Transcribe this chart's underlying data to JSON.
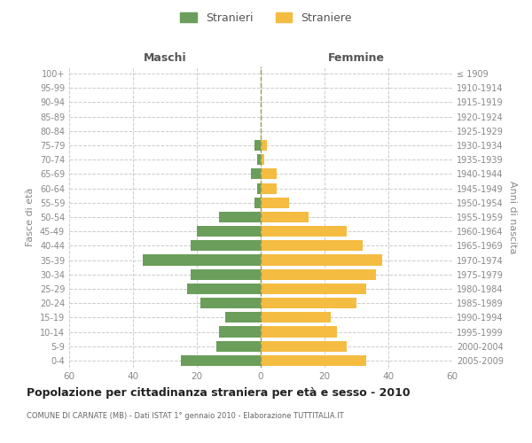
{
  "age_groups": [
    "0-4",
    "5-9",
    "10-14",
    "15-19",
    "20-24",
    "25-29",
    "30-34",
    "35-39",
    "40-44",
    "45-49",
    "50-54",
    "55-59",
    "60-64",
    "65-69",
    "70-74",
    "75-79",
    "80-84",
    "85-89",
    "90-94",
    "95-99",
    "100+"
  ],
  "birth_years": [
    "2005-2009",
    "2000-2004",
    "1995-1999",
    "1990-1994",
    "1985-1989",
    "1980-1984",
    "1975-1979",
    "1970-1974",
    "1965-1969",
    "1960-1964",
    "1955-1959",
    "1950-1954",
    "1945-1949",
    "1940-1944",
    "1935-1939",
    "1930-1934",
    "1925-1929",
    "1920-1924",
    "1915-1919",
    "1910-1914",
    "≤ 1909"
  ],
  "males": [
    25,
    14,
    13,
    11,
    19,
    23,
    22,
    37,
    22,
    20,
    13,
    2,
    1,
    3,
    1,
    2,
    0,
    0,
    0,
    0,
    0
  ],
  "females": [
    33,
    27,
    24,
    22,
    30,
    33,
    36,
    38,
    32,
    27,
    15,
    9,
    5,
    5,
    1,
    2,
    0,
    0,
    0,
    0,
    0
  ],
  "male_color": "#6a9e5a",
  "female_color": "#f5bc42",
  "background_color": "#ffffff",
  "grid_color": "#cccccc",
  "title": "Popolazione per cittadinanza straniera per età e sesso - 2010",
  "subtitle": "COMUNE DI CARNATE (MB) - Dati ISTAT 1° gennaio 2010 - Elaborazione TUTTITALIA.IT",
  "ylabel_left": "Fasce di età",
  "ylabel_right": "Anni di nascita",
  "xlabel_left": "Maschi",
  "xlabel_right": "Femmine",
  "legend_male": "Stranieri",
  "legend_female": "Straniere",
  "xlim": 60,
  "tick_color": "#888888",
  "bar_height": 0.75
}
